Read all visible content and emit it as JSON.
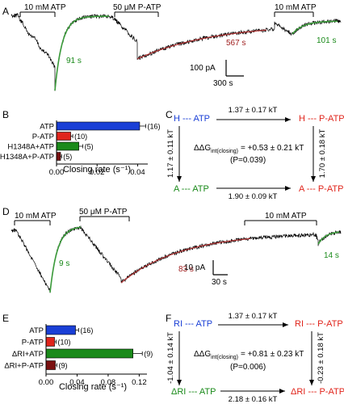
{
  "panels": {
    "A": {
      "label": "A",
      "bars": [
        "10 mM ATP",
        "50 μM P-ATP",
        "10 mM ATP"
      ],
      "tau": [
        "91 s",
        "567 s",
        "101 s"
      ],
      "scale_y": "100 pA",
      "scale_x": "300 s"
    },
    "B": {
      "label": "B",
      "xlabel": "Closing rate (s⁻¹)",
      "ticks": [
        "0.00",
        "0.02",
        "0.04"
      ],
      "categories": [
        "ATP",
        "P-ATP",
        "H1348A+ATP",
        "H1348A+P-ATP"
      ],
      "n": [
        "(16)",
        "(10)",
        "(5)",
        "(5)"
      ]
    },
    "C": {
      "label": "C",
      "top_left": "H --- ATP",
      "top_right": "H --- P-ATP",
      "bottom_left": "A --- ATP",
      "bottom_right": "A --- P-ATP",
      "top_energy": "1.37 ± 0.17 kT",
      "bottom_energy": "1.90 ± 0.09 kT",
      "left_energy": "1.17 ± 0.11 kT",
      "right_energy": "1.70 ± 0.18 kT",
      "delta_label": "ΔΔG",
      "delta_sub": "int(closing)",
      "delta_value": "= +0.53 ± 0.21 kT",
      "p_value": "(P=0.039)"
    },
    "D": {
      "label": "D",
      "bars": [
        "10 mM ATP",
        "50 μM P-ATP",
        "10 mM ATP"
      ],
      "tau": [
        "9 s",
        "83 s",
        "14 s"
      ],
      "scale_y": "10 pA",
      "scale_x": "30 s"
    },
    "E": {
      "label": "E",
      "xlabel": "Closing rate (s⁻¹)",
      "ticks": [
        "0.00",
        "0.04",
        "0.08",
        "0.12"
      ],
      "categories": [
        "ATP",
        "P-ATP",
        "ΔRI+ATP",
        "ΔRI+P-ATP"
      ],
      "n": [
        "(16)",
        "(10)",
        "(9)",
        "(9)"
      ]
    },
    "F": {
      "label": "F",
      "top_left": "RI --- ATP",
      "top_right": "RI --- P-ATP",
      "bottom_left": "ΔRI --- ATP",
      "bottom_right": "ΔRI --- P-ATP",
      "top_energy": "1.37 ± 0.17 kT",
      "bottom_energy": "2.18 ± 0.16 kT",
      "left_energy": "-1.04 ± 0.14 kT",
      "right_energy": "-0.23 ± 0.18 kT",
      "delta_label": "ΔΔG",
      "delta_sub": "int(closing)",
      "delta_value": "= +0.81 ± 0.23 kT",
      "p_value": "(P=0.006)"
    }
  },
  "colors": {
    "blue": "#1a3fd6",
    "red": "#e0241b",
    "green": "#1a8a1a",
    "darkred": "#7a1010",
    "fitgreen": "#3a9a3a",
    "fitred": "#b03030"
  },
  "chart_data": [
    {
      "type": "bar",
      "panel": "B",
      "categories": [
        "ATP",
        "P-ATP",
        "H1348A+ATP",
        "H1348A+P-ATP"
      ],
      "values": [
        0.041,
        0.007,
        0.011,
        0.002
      ],
      "errors": [
        0.003,
        0.001,
        0.002,
        0.0005
      ],
      "colors": [
        "#1a3fd6",
        "#e0241b",
        "#1a8a1a",
        "#7a1010"
      ],
      "xlabel": "Closing rate (s⁻¹)",
      "xlim": [
        0,
        0.045
      ]
    },
    {
      "type": "bar",
      "panel": "E",
      "categories": [
        "ATP",
        "P-ATP",
        "ΔRI+ATP",
        "ΔRI+P-ATP"
      ],
      "values": [
        0.038,
        0.011,
        0.112,
        0.012
      ],
      "errors": [
        0.004,
        0.002,
        0.012,
        0.002
      ],
      "colors": [
        "#1a3fd6",
        "#e0241b",
        "#1a8a1a",
        "#7a1010"
      ],
      "xlabel": "Closing rate (s⁻¹)",
      "xlim": [
        0,
        0.13
      ]
    }
  ]
}
